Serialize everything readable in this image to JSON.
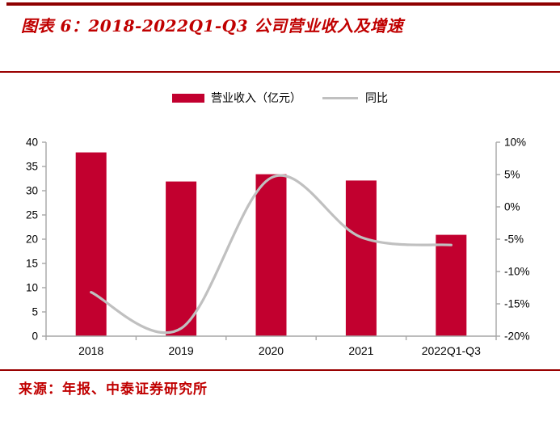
{
  "header": {
    "title": "图表 6：2018-2022Q1-Q3 公司营业收入及增速"
  },
  "legend": {
    "bar_label": "营业收入（亿元）",
    "line_label": "同比"
  },
  "footer": {
    "source": "来源：年报、中泰证券研究所"
  },
  "colors": {
    "bar_red": "#c2002f",
    "line_gray": "#c0c0c0",
    "axis_gray": "#a6a6a6",
    "label_black": "#000000",
    "title_red": "#c00000",
    "rule_dark_red": "#990000",
    "top_bar_dark_red": "#8e0000"
  },
  "chart_data": {
    "type": "combo",
    "title": "2018-2022Q1-Q3 公司营业收入及增速",
    "categories": [
      "2018",
      "2019",
      "2020",
      "2021",
      "2022Q1-Q3"
    ],
    "series": [
      {
        "name": "营业收入（亿元）",
        "type": "bar",
        "axis": "left",
        "color": "#c2002f",
        "values": [
          37.9,
          31.9,
          33.4,
          32.1,
          20.9
        ]
      },
      {
        "name": "同比",
        "type": "line",
        "axis": "right",
        "color": "#c0c0c0",
        "unit": "%",
        "values": [
          -13.2,
          -18.8,
          4.5,
          -4.7,
          -5.9
        ]
      }
    ],
    "left_axis": {
      "min": 0,
      "max": 40,
      "step": 5
    },
    "right_axis": {
      "min": -20,
      "max": 10,
      "step": 5,
      "suffix": "%"
    },
    "grid": false,
    "legend_position": "top"
  }
}
